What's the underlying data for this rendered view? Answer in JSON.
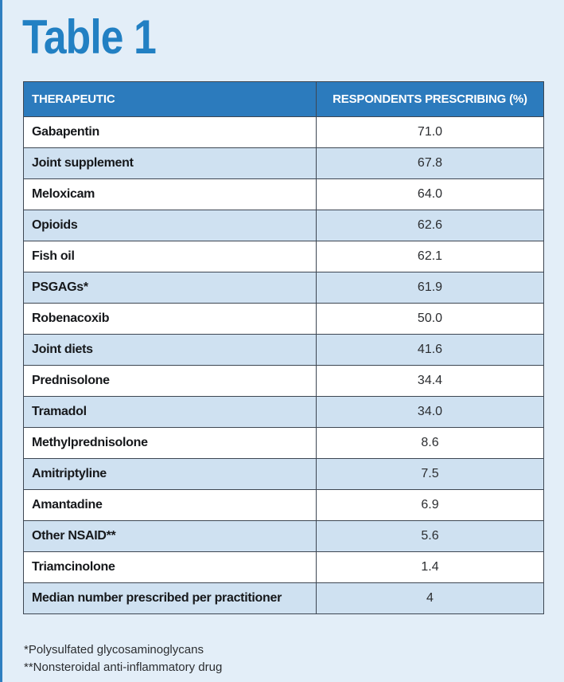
{
  "title": "Table 1",
  "table": {
    "columns": [
      "THERAPEUTIC",
      "RESPONDENTS PRESCRIBING (%)"
    ],
    "rows": [
      {
        "therapeutic": "Gabapentin",
        "value": "71.0"
      },
      {
        "therapeutic": "Joint supplement",
        "value": "67.8"
      },
      {
        "therapeutic": "Meloxicam",
        "value": "64.0"
      },
      {
        "therapeutic": "Opioids",
        "value": "62.6"
      },
      {
        "therapeutic": "Fish oil",
        "value": "62.1"
      },
      {
        "therapeutic": "PSGAGs*",
        "value": "61.9"
      },
      {
        "therapeutic": "Robenacoxib",
        "value": "50.0"
      },
      {
        "therapeutic": "Joint diets",
        "value": "41.6"
      },
      {
        "therapeutic": "Prednisolone",
        "value": "34.4"
      },
      {
        "therapeutic": "Tramadol",
        "value": "34.0"
      },
      {
        "therapeutic": "Methylprednisolone",
        "value": "8.6"
      },
      {
        "therapeutic": "Amitriptyline",
        "value": "7.5"
      },
      {
        "therapeutic": "Amantadine",
        "value": "6.9"
      },
      {
        "therapeutic": "Other NSAID**",
        "value": "5.6"
      },
      {
        "therapeutic": "Triamcinolone",
        "value": "1.4"
      },
      {
        "therapeutic": "Median number prescribed per practitioner",
        "value": "4"
      }
    ]
  },
  "footnotes": [
    "*Polysulfated glycosaminoglycans",
    "**Nonsteroidal anti-inflammatory drug"
  ],
  "colors": {
    "background": "#e3eef8",
    "accent": "#2280c3",
    "header_fill": "#2c7bbd",
    "row_stripe": "#cfe1f1"
  }
}
